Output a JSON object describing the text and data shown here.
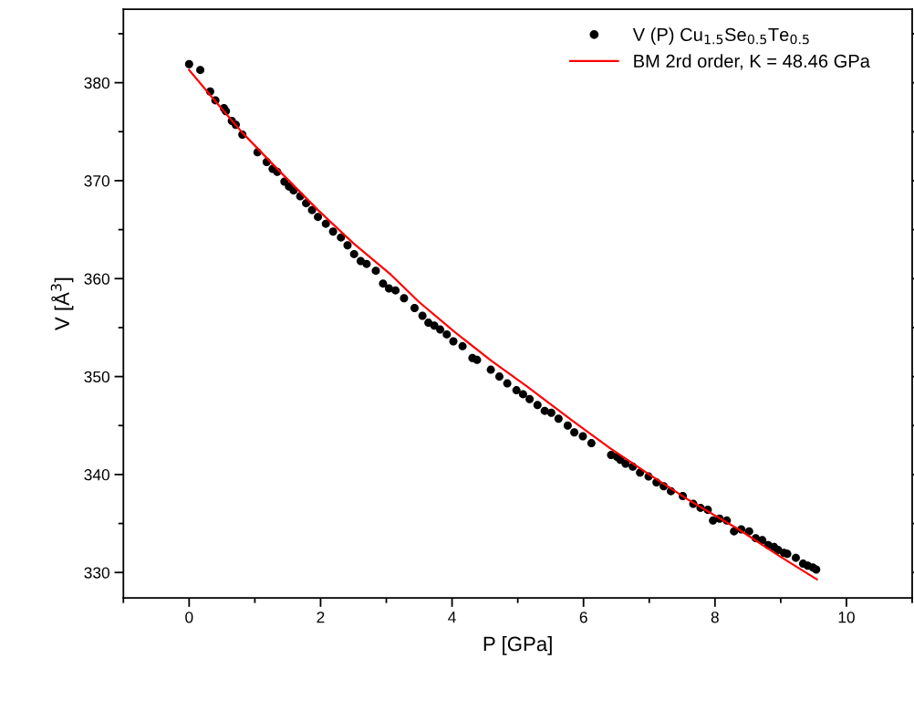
{
  "chart_data": {
    "type": "scatter",
    "xlabel": "P [GPa]",
    "ylabel": "V [Å$^{3}$]",
    "xlim": [
      -1,
      11
    ],
    "ylim": [
      327.4,
      387.5
    ],
    "xticks": [
      0,
      2,
      4,
      6,
      8,
      10
    ],
    "yticks": [
      330,
      340,
      350,
      360,
      370,
      380
    ],
    "grid": false,
    "legend": "top right",
    "marker": "circle",
    "series": [
      {
        "name": "V (P) Cu$_{1.5}$Se$_{0.5}$Te$_{0.5}$",
        "color": "#000000",
        "x": [
          0,
          0.17,
          0.32,
          0.4,
          0.53,
          0.56,
          0.65,
          0.71,
          0.81,
          1.04,
          1.18,
          1.27,
          1.34,
          1.45,
          1.52,
          1.59,
          1.69,
          1.78,
          1.87,
          1.96,
          2.08,
          2.19,
          2.31,
          2.41,
          2.51,
          2.61,
          2.7,
          2.84,
          2.95,
          3.04,
          3.14,
          3.27,
          3.43,
          3.55,
          3.64,
          3.73,
          3.82,
          3.92,
          4.02,
          4.16,
          4.31,
          4.38,
          4.59,
          4.72,
          4.84,
          4.98,
          5.08,
          5.18,
          5.3,
          5.41,
          5.51,
          5.62,
          5.76,
          5.86,
          5.99,
          6.12,
          6.42,
          6.51,
          6.56,
          6.64,
          6.75,
          6.86,
          6.99,
          7.11,
          7.22,
          7.33,
          7.51,
          7.67,
          7.78,
          7.89,
          7.97,
          8.07,
          8.18,
          8.29,
          8.4,
          8.52,
          8.62,
          8.72,
          8.81,
          8.9,
          8.96,
          9.05,
          9.1,
          9.23,
          9.34,
          9.41,
          9.49,
          9.54
        ],
        "values": [
          381.9,
          381.3,
          379.1,
          378.2,
          377.4,
          377.1,
          376.1,
          375.7,
          374.7,
          372.9,
          371.9,
          371.2,
          370.9,
          369.9,
          369.4,
          369.0,
          368.4,
          367.7,
          367.0,
          366.3,
          365.6,
          364.8,
          364.2,
          363.4,
          362.5,
          361.8,
          361.5,
          360.8,
          359.5,
          359.0,
          358.8,
          358.0,
          357.0,
          356.2,
          355.5,
          355.2,
          354.8,
          354.3,
          353.6,
          353.1,
          351.9,
          351.7,
          350.7,
          350.0,
          349.3,
          348.6,
          348.2,
          347.7,
          347.1,
          346.5,
          346.3,
          345.7,
          345.0,
          344.3,
          343.9,
          343.2,
          342.0,
          341.8,
          341.5,
          341.1,
          340.8,
          340.2,
          339.8,
          339.2,
          338.8,
          338.3,
          337.8,
          337.0,
          336.6,
          336.4,
          335.3,
          335.5,
          335.3,
          334.2,
          334.4,
          334.2,
          333.5,
          333.3,
          332.8,
          332.6,
          332.3,
          332.0,
          331.9,
          331.5,
          330.9,
          330.7,
          330.5,
          330.3
        ]
      },
      {
        "name": "BM 2rd order, K = 48.46 GPa",
        "type": "line",
        "color": "#ff0000",
        "marker": "none",
        "line_style": "solid",
        "x": [
          0,
          0.4,
          0.81,
          1.4,
          1.96,
          2.5,
          3.07,
          3.5,
          4.03,
          4.6,
          5.14,
          5.83,
          6.4,
          6.98,
          7.6,
          8.36,
          9.0,
          9.55
        ],
        "values": [
          381.3,
          378.1,
          374.9,
          370.8,
          367.0,
          363.6,
          360.4,
          357.6,
          354.6,
          351.6,
          349.0,
          345.5,
          342.7,
          340.1,
          337.4,
          334.4,
          331.6,
          329.3
        ]
      }
    ]
  }
}
